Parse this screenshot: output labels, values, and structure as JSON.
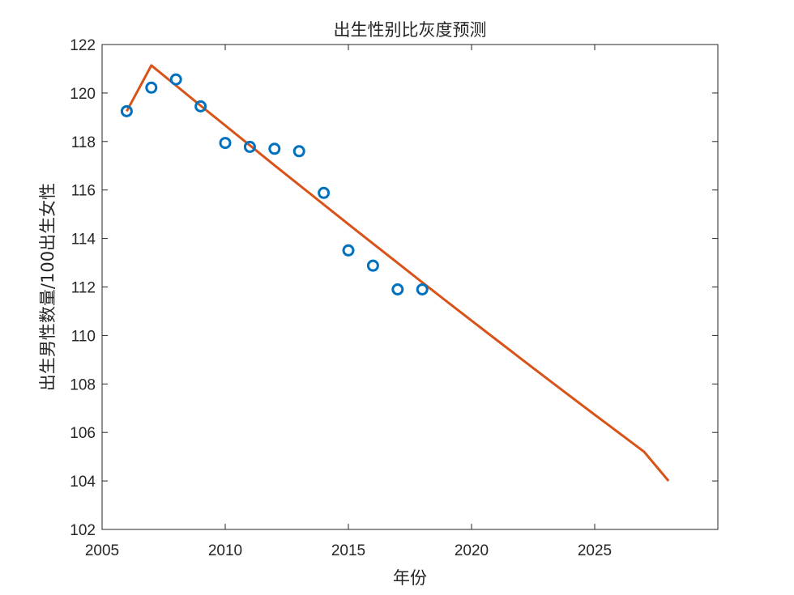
{
  "chart_data": {
    "type": "scatter",
    "title": "出生性别比灰度预测",
    "xlabel": "年份",
    "ylabel": "出生男性数量/100出生女性",
    "xlim": [
      2005,
      2030
    ],
    "ylim": [
      102,
      122
    ],
    "xticks": [
      2005,
      2010,
      2015,
      2020,
      2025
    ],
    "yticks": [
      102,
      104,
      106,
      108,
      110,
      112,
      114,
      116,
      118,
      120,
      122
    ],
    "grid": false,
    "box": true,
    "series": [
      {
        "kind": "markers",
        "color": "#0072BD",
        "x": [
          2006,
          2007,
          2008,
          2009,
          2010,
          2011,
          2012,
          2013,
          2014,
          2015,
          2016,
          2017,
          2018
        ],
        "y": [
          119.25,
          120.22,
          120.56,
          119.45,
          117.94,
          117.78,
          117.7,
          117.6,
          115.88,
          113.51,
          112.88,
          111.9,
          111.9
        ]
      },
      {
        "kind": "line",
        "color": "#D95319",
        "x": [
          2006,
          2007,
          2008,
          2009,
          2010,
          2011,
          2012,
          2013,
          2014,
          2015,
          2016,
          2017,
          2018,
          2019,
          2020,
          2021,
          2022,
          2023,
          2024,
          2025,
          2026,
          2027,
          2028
        ],
        "y": [
          119.25,
          121.14,
          120.31,
          119.48,
          118.66,
          117.84,
          117.02,
          116.21,
          115.4,
          114.59,
          113.79,
          112.99,
          112.19,
          111.4,
          110.61,
          109.83,
          109.05,
          108.27,
          107.5,
          106.73,
          105.97,
          105.21,
          104.0
        ]
      }
    ]
  }
}
